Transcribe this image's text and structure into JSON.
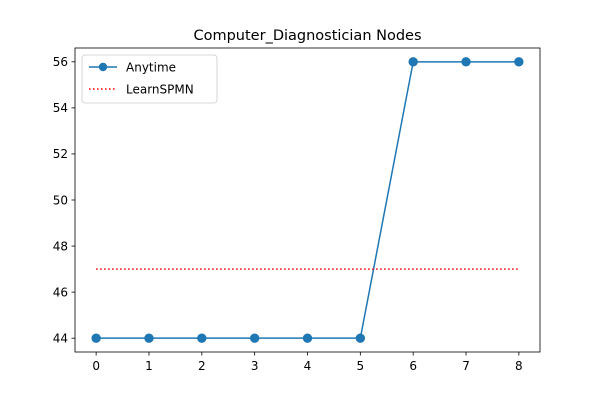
{
  "chart_data": {
    "type": "line",
    "title": "Computer_Diagnostician Nodes",
    "xlabel": "",
    "ylabel": "",
    "x": [
      0,
      1,
      2,
      3,
      4,
      5,
      6,
      7,
      8
    ],
    "xlim": [
      -0.4,
      8.4
    ],
    "ylim": [
      43.4,
      56.6
    ],
    "xticks": [
      0,
      1,
      2,
      3,
      4,
      5,
      6,
      7,
      8
    ],
    "yticks": [
      44,
      46,
      48,
      50,
      52,
      54,
      56
    ],
    "grid": false,
    "legend_position": "top-left",
    "series": [
      {
        "name": "Anytime",
        "style": "solid-line-with-circle-markers",
        "color": "#1f77b4",
        "values": [
          44,
          44,
          44,
          44,
          44,
          44,
          56,
          56,
          56
        ]
      },
      {
        "name": "LearnSPMN",
        "style": "dotted-line",
        "color": "#ff0000",
        "values": [
          47,
          47,
          47,
          47,
          47,
          47,
          47,
          47,
          47
        ]
      }
    ]
  }
}
